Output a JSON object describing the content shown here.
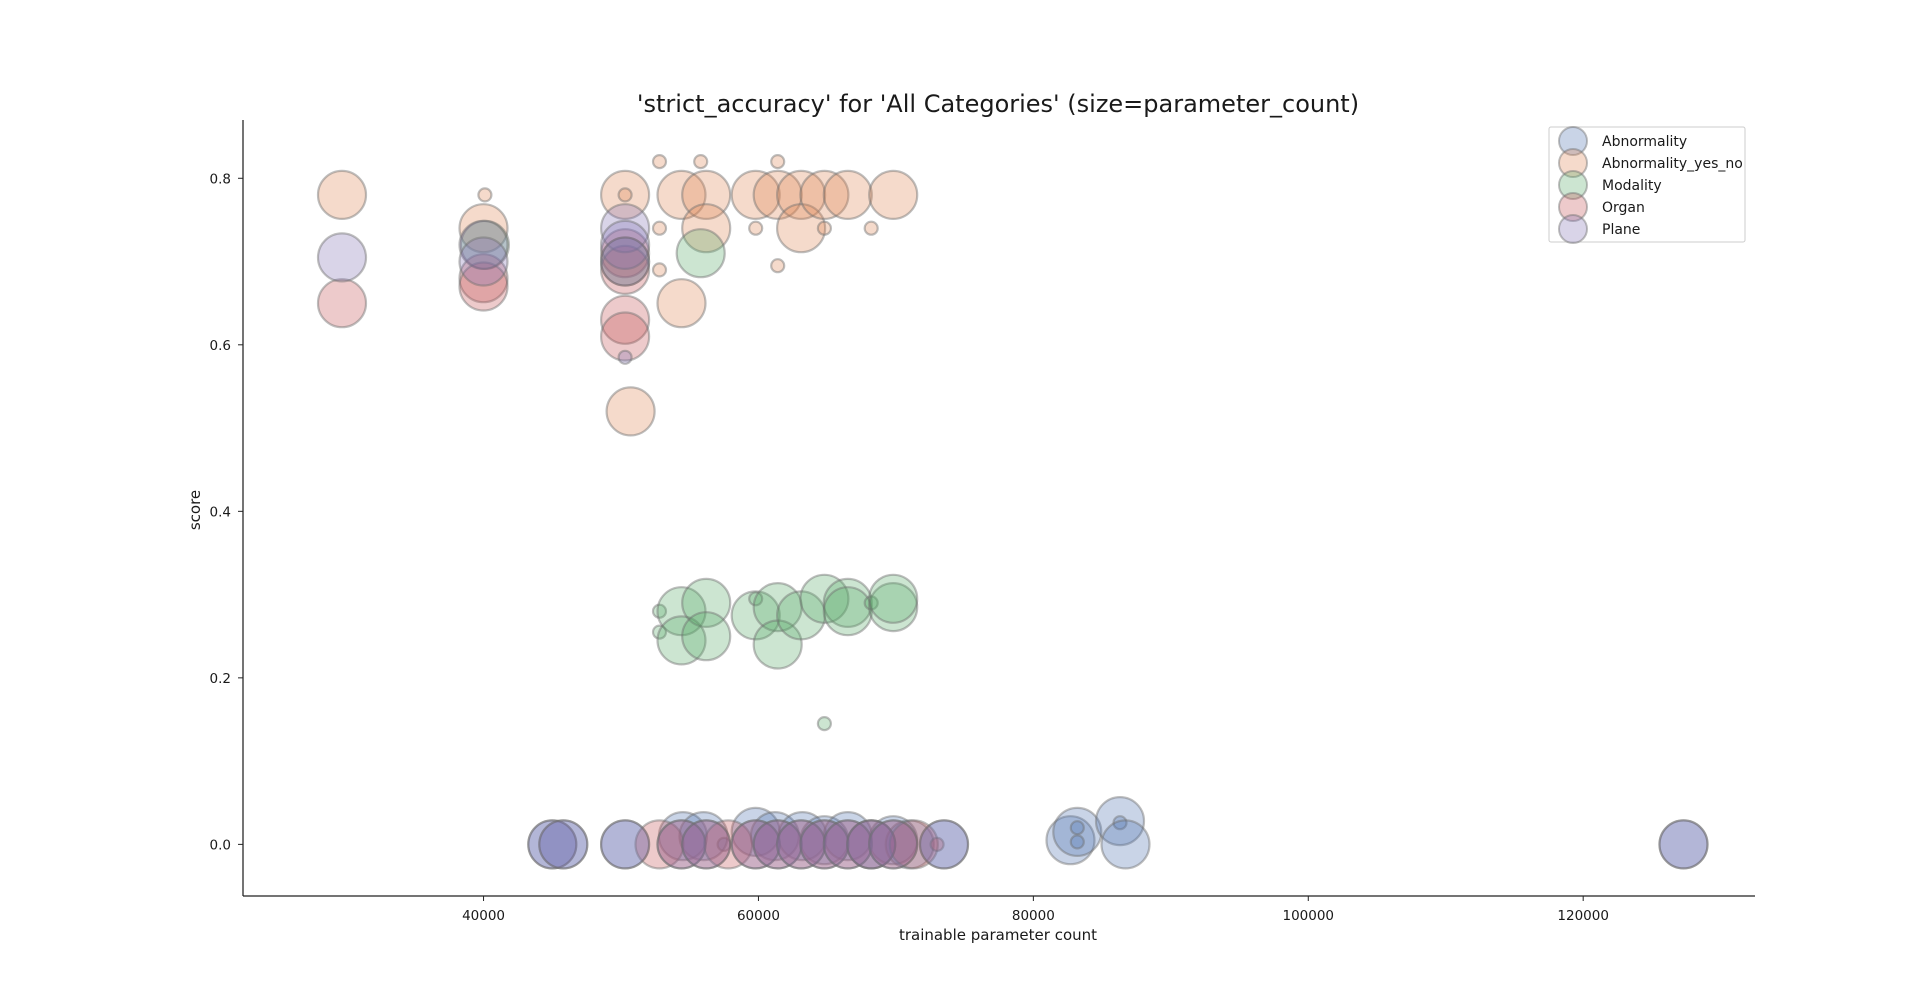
{
  "chart_data": {
    "type": "scatter",
    "title": "'strict_accuracy' for 'All Categories' (size=parameter_count)",
    "xlabel": "trainable parameter count",
    "ylabel": "score",
    "xlim": [
      22500,
      132500
    ],
    "ylim": [
      -0.062,
      0.87
    ],
    "xticks": [
      40000,
      60000,
      80000,
      100000,
      120000
    ],
    "yticks": [
      0.0,
      0.2,
      0.4,
      0.6,
      0.8
    ],
    "grid": false,
    "legend_position": "top-right",
    "size_encoding": "parameter_count",
    "series": [
      {
        "name": "Abnormality",
        "color": "#4c72b0",
        "points": [
          {
            "x": 45000,
            "y": 0.0,
            "s": 1
          },
          {
            "x": 45800,
            "y": 0.0,
            "s": 1
          },
          {
            "x": 50300,
            "y": 0.0,
            "s": 1
          },
          {
            "x": 54500,
            "y": 0.01,
            "s": 1
          },
          {
            "x": 56000,
            "y": 0.01,
            "s": 1
          },
          {
            "x": 57500,
            "y": 0.0,
            "s": 0.3
          },
          {
            "x": 59800,
            "y": 0.015,
            "s": 1
          },
          {
            "x": 61200,
            "y": 0.01,
            "s": 1
          },
          {
            "x": 63200,
            "y": 0.01,
            "s": 1
          },
          {
            "x": 64800,
            "y": 0.005,
            "s": 1
          },
          {
            "x": 66500,
            "y": 0.01,
            "s": 1
          },
          {
            "x": 68200,
            "y": 0.0,
            "s": 1
          },
          {
            "x": 69800,
            "y": 0.005,
            "s": 1
          },
          {
            "x": 71000,
            "y": 0.0,
            "s": 1
          },
          {
            "x": 73500,
            "y": 0.0,
            "s": 1
          },
          {
            "x": 82700,
            "y": 0.005,
            "s": 1
          },
          {
            "x": 83200,
            "y": 0.015,
            "s": 1
          },
          {
            "x": 83200,
            "y": 0.02,
            "s": 0.3
          },
          {
            "x": 83200,
            "y": 0.003,
            "s": 0.3
          },
          {
            "x": 86300,
            "y": 0.028,
            "s": 1
          },
          {
            "x": 86300,
            "y": 0.026,
            "s": 0.3
          },
          {
            "x": 86700,
            "y": 0.0,
            "s": 1
          },
          {
            "x": 127300,
            "y": 0.0,
            "s": 1
          }
        ]
      },
      {
        "name": "Abnormality_yes_no",
        "color": "#dd8452",
        "points": [
          {
            "x": 29700,
            "y": 0.78,
            "s": 1
          },
          {
            "x": 40000,
            "y": 0.74,
            "s": 1
          },
          {
            "x": 40100,
            "y": 0.78,
            "s": 0.3
          },
          {
            "x": 50300,
            "y": 0.78,
            "s": 1
          },
          {
            "x": 50300,
            "y": 0.78,
            "s": 0.3
          },
          {
            "x": 52800,
            "y": 0.82,
            "s": 0.3
          },
          {
            "x": 52800,
            "y": 0.74,
            "s": 0.3
          },
          {
            "x": 52800,
            "y": 0.69,
            "s": 0.3
          },
          {
            "x": 54400,
            "y": 0.78,
            "s": 1
          },
          {
            "x": 54400,
            "y": 0.65,
            "s": 1
          },
          {
            "x": 55800,
            "y": 0.82,
            "s": 0.3
          },
          {
            "x": 56200,
            "y": 0.78,
            "s": 1
          },
          {
            "x": 56200,
            "y": 0.74,
            "s": 1
          },
          {
            "x": 59800,
            "y": 0.78,
            "s": 1
          },
          {
            "x": 59800,
            "y": 0.74,
            "s": 0.3
          },
          {
            "x": 61400,
            "y": 0.82,
            "s": 0.3
          },
          {
            "x": 61400,
            "y": 0.78,
            "s": 1
          },
          {
            "x": 61400,
            "y": 0.695,
            "s": 0.3
          },
          {
            "x": 63100,
            "y": 0.78,
            "s": 1
          },
          {
            "x": 63100,
            "y": 0.74,
            "s": 1
          },
          {
            "x": 64800,
            "y": 0.78,
            "s": 1
          },
          {
            "x": 64800,
            "y": 0.74,
            "s": 0.3
          },
          {
            "x": 66500,
            "y": 0.78,
            "s": 1
          },
          {
            "x": 68200,
            "y": 0.74,
            "s": 0.3
          },
          {
            "x": 69800,
            "y": 0.78,
            "s": 1
          },
          {
            "x": 50700,
            "y": 0.52,
            "s": 1
          }
        ]
      },
      {
        "name": "Modality",
        "color": "#55a868",
        "points": [
          {
            "x": 40100,
            "y": 0.72,
            "s": 1
          },
          {
            "x": 50300,
            "y": 0.7,
            "s": 1
          },
          {
            "x": 55800,
            "y": 0.71,
            "s": 1
          },
          {
            "x": 52800,
            "y": 0.28,
            "s": 0.3
          },
          {
            "x": 52800,
            "y": 0.255,
            "s": 0.3
          },
          {
            "x": 54400,
            "y": 0.28,
            "s": 1
          },
          {
            "x": 54400,
            "y": 0.245,
            "s": 1
          },
          {
            "x": 56200,
            "y": 0.29,
            "s": 1
          },
          {
            "x": 56200,
            "y": 0.25,
            "s": 1
          },
          {
            "x": 59800,
            "y": 0.275,
            "s": 1
          },
          {
            "x": 59800,
            "y": 0.295,
            "s": 0.3
          },
          {
            "x": 61400,
            "y": 0.285,
            "s": 1
          },
          {
            "x": 61400,
            "y": 0.24,
            "s": 1
          },
          {
            "x": 63100,
            "y": 0.275,
            "s": 1
          },
          {
            "x": 64800,
            "y": 0.295,
            "s": 1
          },
          {
            "x": 64800,
            "y": 0.145,
            "s": 0.3
          },
          {
            "x": 66500,
            "y": 0.29,
            "s": 1
          },
          {
            "x": 66500,
            "y": 0.28,
            "s": 1
          },
          {
            "x": 68200,
            "y": 0.29,
            "s": 0.3
          },
          {
            "x": 69800,
            "y": 0.285,
            "s": 1
          },
          {
            "x": 69800,
            "y": 0.295,
            "s": 1
          }
        ]
      },
      {
        "name": "Organ",
        "color": "#c44e52",
        "points": [
          {
            "x": 29700,
            "y": 0.65,
            "s": 1
          },
          {
            "x": 40000,
            "y": 0.68,
            "s": 1
          },
          {
            "x": 40000,
            "y": 0.67,
            "s": 1
          },
          {
            "x": 50300,
            "y": 0.71,
            "s": 1
          },
          {
            "x": 50300,
            "y": 0.69,
            "s": 1
          },
          {
            "x": 50300,
            "y": 0.63,
            "s": 1
          },
          {
            "x": 50300,
            "y": 0.61,
            "s": 1
          },
          {
            "x": 52800,
            "y": 0.0,
            "s": 1
          },
          {
            "x": 54400,
            "y": 0.0,
            "s": 1
          },
          {
            "x": 56200,
            "y": 0.0,
            "s": 1
          },
          {
            "x": 57800,
            "y": 0.0,
            "s": 1
          },
          {
            "x": 59800,
            "y": 0.0,
            "s": 1
          },
          {
            "x": 61400,
            "y": 0.0,
            "s": 1
          },
          {
            "x": 63100,
            "y": 0.0,
            "s": 1
          },
          {
            "x": 64800,
            "y": 0.0,
            "s": 1
          },
          {
            "x": 66500,
            "y": 0.0,
            "s": 1
          },
          {
            "x": 68200,
            "y": 0.0,
            "s": 1
          },
          {
            "x": 69800,
            "y": 0.0,
            "s": 1
          },
          {
            "x": 71300,
            "y": 0.0,
            "s": 1
          },
          {
            "x": 73000,
            "y": 0.0,
            "s": 0.3
          }
        ]
      },
      {
        "name": "Plane",
        "color": "#8172b3",
        "points": [
          {
            "x": 29700,
            "y": 0.705,
            "s": 1
          },
          {
            "x": 40000,
            "y": 0.72,
            "s": 1
          },
          {
            "x": 40000,
            "y": 0.7,
            "s": 1
          },
          {
            "x": 50300,
            "y": 0.74,
            "s": 1
          },
          {
            "x": 50300,
            "y": 0.72,
            "s": 1
          },
          {
            "x": 50300,
            "y": 0.7,
            "s": 1
          },
          {
            "x": 50300,
            "y": 0.585,
            "s": 0.3
          },
          {
            "x": 45000,
            "y": 0.0,
            "s": 1
          },
          {
            "x": 45800,
            "y": 0.0,
            "s": 1
          },
          {
            "x": 50300,
            "y": 0.0,
            "s": 1
          },
          {
            "x": 54400,
            "y": 0.0,
            "s": 1
          },
          {
            "x": 56200,
            "y": 0.0,
            "s": 1
          },
          {
            "x": 59800,
            "y": 0.0,
            "s": 1
          },
          {
            "x": 61400,
            "y": 0.0,
            "s": 1
          },
          {
            "x": 63100,
            "y": 0.0,
            "s": 1
          },
          {
            "x": 64800,
            "y": 0.0,
            "s": 1
          },
          {
            "x": 66500,
            "y": 0.0,
            "s": 1
          },
          {
            "x": 68200,
            "y": 0.0,
            "s": 1
          },
          {
            "x": 69800,
            "y": 0.0,
            "s": 1
          },
          {
            "x": 73500,
            "y": 0.0,
            "s": 1
          },
          {
            "x": 127300,
            "y": 0.0,
            "s": 1
          }
        ]
      }
    ]
  }
}
